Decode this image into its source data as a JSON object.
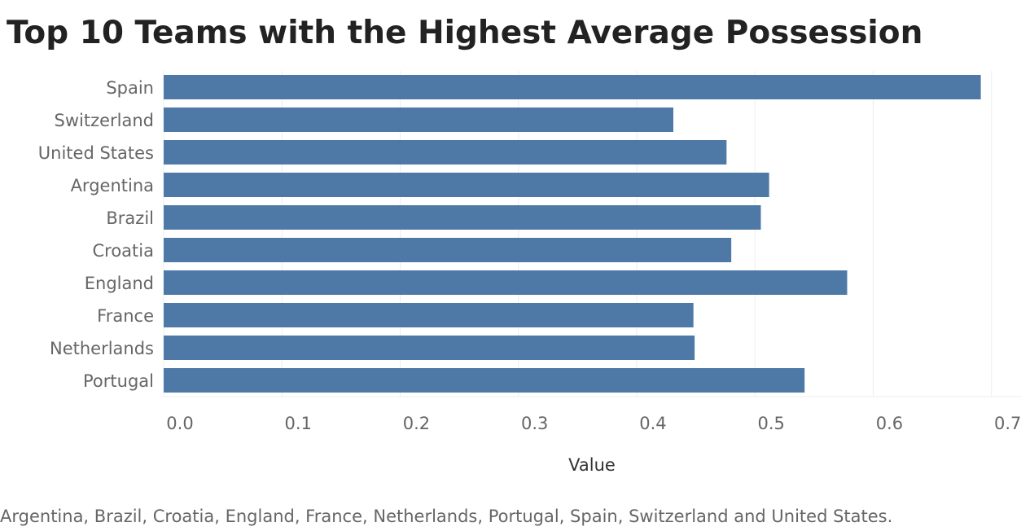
{
  "chart_data": {
    "type": "bar",
    "orientation": "horizontal",
    "title": "Top 10 Teams with the Highest Average Possession",
    "xlabel": "Value",
    "ylabel": "",
    "categories": [
      "Spain",
      "Switzerland",
      "United States",
      "Argentina",
      "Brazil",
      "Croatia",
      "England",
      "France",
      "Netherlands",
      "Portugal"
    ],
    "values": [
      0.691,
      0.431,
      0.476,
      0.512,
      0.505,
      0.48,
      0.578,
      0.448,
      0.449,
      0.542
    ],
    "xlim": [
      0,
      0.725
    ],
    "xticks": [
      "0.0",
      "0.1",
      "0.2",
      "0.3",
      "0.4",
      "0.5",
      "0.6",
      "0.7"
    ],
    "grid": true,
    "bar_color": "#4e79a7",
    "caption": "Argentina, Brazil, Croatia, England, France, Netherlands, Portugal,  Spain,  Switzerland and  United States."
  }
}
